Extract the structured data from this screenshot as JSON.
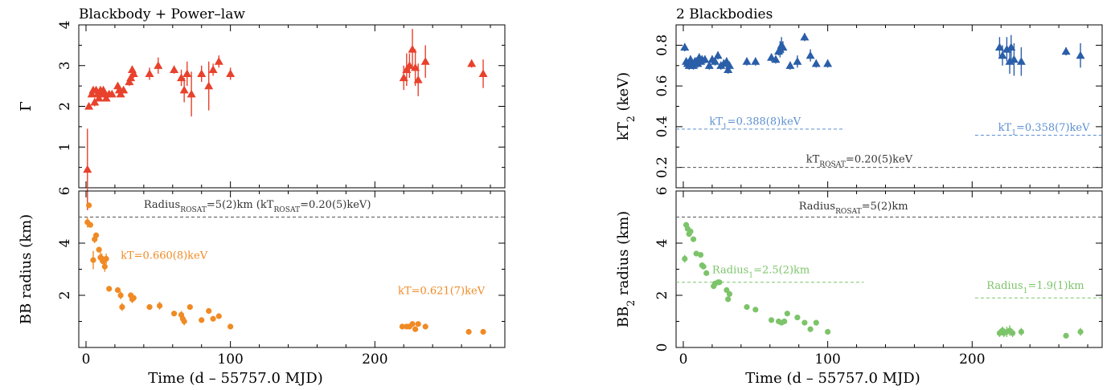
{
  "colors": {
    "red": "#e8412c",
    "orange": "#f08a24",
    "blue": "#2a5ea8",
    "green": "#7cc46a",
    "lightblue": "#5b8fcf",
    "gray": "#555555"
  },
  "shared_xlabel": "Time (d – 55757.0 MJD)",
  "chart_data": [
    {
      "id": "top-left",
      "type": "scatter",
      "title": "Blackbody + Power–law",
      "ylabel": "Γ",
      "xlabel": "",
      "xlim": [
        -5,
        290
      ],
      "ylim": [
        0,
        4
      ],
      "yticks": [
        1,
        2,
        3,
        4
      ],
      "xticks": [
        0,
        100,
        200
      ],
      "show_xtick_labels": false,
      "marker": "triangle",
      "color": "red",
      "x": [
        1,
        2,
        4,
        5,
        6,
        7,
        8,
        9,
        10,
        11,
        12,
        13,
        14,
        16,
        18,
        22,
        23,
        24,
        26,
        30,
        31,
        32,
        33,
        44,
        50,
        61,
        66,
        68,
        70,
        73,
        80,
        85,
        88,
        92,
        100,
        220,
        222,
        224,
        226,
        228,
        230,
        235,
        267,
        275
      ],
      "y": [
        0.45,
        2.0,
        2.3,
        2.4,
        2.1,
        2.4,
        2.3,
        2.2,
        2.4,
        2.3,
        2.4,
        2.3,
        2.2,
        2.3,
        2.3,
        2.5,
        2.4,
        2.3,
        2.4,
        2.6,
        2.7,
        2.9,
        2.8,
        2.8,
        3.0,
        2.9,
        2.7,
        2.4,
        2.8,
        2.3,
        2.8,
        2.5,
        2.9,
        3.1,
        2.8,
        2.7,
        2.9,
        3.0,
        3.4,
        2.95,
        2.65,
        3.1,
        3.05,
        2.8
      ],
      "yerr": [
        1.0,
        0.05,
        0.05,
        0.05,
        0.1,
        0.05,
        0.05,
        0.05,
        0.05,
        0.05,
        0.05,
        0.05,
        0.05,
        0.05,
        0.05,
        0.05,
        0.05,
        0.05,
        0.05,
        0.1,
        0.1,
        0.1,
        0.1,
        0.15,
        0.2,
        0.1,
        0.2,
        0.3,
        0.3,
        0.55,
        0.2,
        0.6,
        0.15,
        0.15,
        0.15,
        0.3,
        0.4,
        0.3,
        0.5,
        0.45,
        0.4,
        0.4,
        0.1,
        0.35
      ],
      "annotations": []
    },
    {
      "id": "bottom-left",
      "type": "scatter",
      "title": "",
      "ylabel": "BB radius (km)",
      "xlabel": "Time (d – 55757.0 MJD)",
      "xlim": [
        -5,
        290
      ],
      "ylim": [
        0,
        6
      ],
      "yticks": [
        2,
        4,
        6
      ],
      "xticks": [
        0,
        100,
        200
      ],
      "show_xtick_labels": true,
      "marker": "circle",
      "color": "orange",
      "x": [
        1,
        2,
        3,
        5,
        6,
        7,
        9,
        10,
        11,
        12,
        13,
        14,
        16,
        22,
        24,
        25,
        31,
        32,
        33,
        44,
        51,
        61,
        66,
        67,
        68,
        72,
        80,
        85,
        88,
        92,
        100,
        219,
        222,
        224,
        226,
        228,
        230,
        235,
        265,
        275
      ],
      "y": [
        4.8,
        5.45,
        4.7,
        3.35,
        4.15,
        4.3,
        3.75,
        3.45,
        3.4,
        3.3,
        3.1,
        3.4,
        2.25,
        2.2,
        2.0,
        1.55,
        2.0,
        1.85,
        1.9,
        1.55,
        1.6,
        1.3,
        1.25,
        1.1,
        1.0,
        1.55,
        1.05,
        1.4,
        1.1,
        1.2,
        0.8,
        0.8,
        0.8,
        0.8,
        0.9,
        0.7,
        0.9,
        0.8,
        0.6,
        0.6
      ],
      "yerr": [
        0.2,
        0.1,
        0.1,
        0.35,
        0.15,
        0.1,
        0.1,
        0.2,
        0.2,
        0.2,
        0.2,
        0.2,
        0.1,
        0.1,
        0.15,
        0.15,
        0.1,
        0.15,
        0.1,
        0.1,
        0.15,
        0.1,
        0.15,
        0.15,
        0.15,
        0.1,
        0.1,
        0.1,
        0.1,
        0.1,
        0.1,
        0.1,
        0.1,
        0.1,
        0.1,
        0.1,
        0.1,
        0.1,
        0.1,
        0.1
      ],
      "lines": [
        {
          "name": "radius-rosat",
          "x0": -5,
          "x1": 290,
          "y": 5.0,
          "color": "gray",
          "dash": "4,3"
        }
      ],
      "annotations": [
        {
          "name": "rosat-label",
          "x": 40,
          "y": 5.35,
          "parts": [
            {
              "t": "Radius",
              "sub": false
            },
            {
              "t": "ROSAT",
              "sub": true
            },
            {
              "t": "=5(2)km (kT",
              "sub": false
            },
            {
              "t": "ROSAT",
              "sub": true
            },
            {
              "t": "=0.20(5)keV)",
              "sub": false
            }
          ],
          "color": "#333333"
        },
        {
          "name": "kt1-label",
          "x": 24,
          "y": 3.4,
          "parts": [
            {
              "t": "kT=0.660(8)keV",
              "sub": false
            }
          ],
          "color": "orange"
        },
        {
          "name": "kt2-label",
          "x": 216,
          "y": 2.05,
          "parts": [
            {
              "t": "kT=0.621(7)keV",
              "sub": false
            }
          ],
          "color": "orange"
        }
      ]
    },
    {
      "id": "top-right",
      "type": "scatter",
      "title": "2 Blackbodies",
      "ylabel": "kT₂ (keV)",
      "ylabel_parts": [
        {
          "t": "kT",
          "sub": false
        },
        {
          "t": "2",
          "sub": true
        },
        {
          "t": " (keV)",
          "sub": false
        }
      ],
      "xlabel": "",
      "xlim": [
        -5,
        290
      ],
      "ylim": [
        0.1,
        0.9
      ],
      "yticks": [
        0.2,
        0.4,
        0.6,
        0.8
      ],
      "xticks": [
        0,
        100,
        200
      ],
      "show_xtick_labels": false,
      "marker": "triangle",
      "color": "blue",
      "x": [
        1,
        2,
        3,
        4,
        5,
        6,
        7,
        8,
        9,
        10,
        11,
        12,
        13,
        15,
        18,
        20,
        22,
        24,
        26,
        28,
        30,
        31,
        32,
        44,
        50,
        61,
        64,
        66,
        67,
        68,
        69,
        74,
        79,
        84,
        88,
        92,
        100,
        219,
        221,
        224,
        226,
        227,
        229,
        234,
        265,
        275
      ],
      "y": [
        0.79,
        0.72,
        0.71,
        0.7,
        0.73,
        0.71,
        0.7,
        0.72,
        0.72,
        0.71,
        0.74,
        0.72,
        0.73,
        0.73,
        0.7,
        0.73,
        0.72,
        0.75,
        0.7,
        0.71,
        0.72,
        0.68,
        0.7,
        0.72,
        0.72,
        0.74,
        0.73,
        0.77,
        0.78,
        0.8,
        0.79,
        0.7,
        0.72,
        0.84,
        0.75,
        0.71,
        0.71,
        0.79,
        0.75,
        0.78,
        0.72,
        0.79,
        0.73,
        0.72,
        0.77,
        0.75
      ],
      "yerr": [
        0.02,
        0.02,
        0.02,
        0.02,
        0.02,
        0.02,
        0.02,
        0.02,
        0.02,
        0.02,
        0.02,
        0.02,
        0.02,
        0.02,
        0.02,
        0.02,
        0.02,
        0.02,
        0.02,
        0.02,
        0.02,
        0.02,
        0.02,
        0.02,
        0.02,
        0.02,
        0.02,
        0.02,
        0.04,
        0.04,
        0.03,
        0.02,
        0.03,
        0.02,
        0.03,
        0.02,
        0.02,
        0.05,
        0.05,
        0.06,
        0.06,
        0.06,
        0.08,
        0.07,
        0.02,
        0.06
      ],
      "lines": [
        {
          "name": "kt1-line-early",
          "x0": -5,
          "x1": 112,
          "y": 0.388,
          "color": "lightblue",
          "dash": "4,3"
        },
        {
          "name": "kt1-line-late",
          "x0": 202,
          "x1": 290,
          "y": 0.358,
          "color": "lightblue",
          "dash": "4,3"
        },
        {
          "name": "kt-rosat-line",
          "x0": -5,
          "x1": 290,
          "y": 0.2,
          "color": "gray",
          "dash": "4,3"
        }
      ],
      "annotations": [
        {
          "name": "kt1-early-label",
          "x": 18,
          "y": 0.41,
          "parts": [
            {
              "t": "kT",
              "sub": false
            },
            {
              "t": "1",
              "sub": true
            },
            {
              "t": "=0.388(8)keV",
              "sub": false
            }
          ],
          "color": "lightblue"
        },
        {
          "name": "kt1-late-label",
          "x": 218,
          "y": 0.38,
          "parts": [
            {
              "t": "kT",
              "sub": false
            },
            {
              "t": "1",
              "sub": true
            },
            {
              "t": "=0.358(7)keV",
              "sub": false
            }
          ],
          "color": "lightblue"
        },
        {
          "name": "kt-rosat-label",
          "x": 85,
          "y": 0.225,
          "parts": [
            {
              "t": "kT",
              "sub": false
            },
            {
              "t": "ROSAT",
              "sub": true
            },
            {
              "t": "=0.20(5)keV",
              "sub": false
            }
          ],
          "color": "#333333"
        }
      ]
    },
    {
      "id": "bottom-right",
      "type": "scatter",
      "title": "",
      "ylabel": "BB₂ radius (km)",
      "ylabel_parts": [
        {
          "t": "BB",
          "sub": false
        },
        {
          "t": "2",
          "sub": true
        },
        {
          "t": " radius (km)",
          "sub": false
        }
      ],
      "xlabel": "Time (d – 55757.0 MJD)",
      "xlim": [
        -5,
        290
      ],
      "ylim": [
        0,
        6
      ],
      "yticks": [
        0,
        2,
        4,
        6
      ],
      "xticks": [
        0,
        100,
        200
      ],
      "show_xtick_labels": true,
      "marker": "circle",
      "color": "green",
      "x": [
        1,
        2,
        3,
        4,
        5,
        7,
        9,
        12,
        13,
        14,
        16,
        21,
        22,
        24,
        25,
        30,
        31,
        32,
        44,
        50,
        61,
        66,
        68,
        70,
        72,
        79,
        84,
        88,
        92,
        100,
        219,
        221,
        222,
        224,
        226,
        228,
        234,
        265,
        275
      ],
      "y": [
        3.4,
        4.7,
        4.55,
        4.35,
        4.45,
        4.15,
        3.6,
        3.55,
        3.15,
        3.1,
        2.85,
        2.35,
        2.45,
        2.5,
        2.5,
        2.2,
        1.85,
        2.05,
        1.55,
        1.45,
        1.05,
        1.0,
        0.95,
        1.0,
        1.3,
        1.15,
        0.95,
        0.7,
        0.95,
        0.6,
        0.55,
        0.65,
        0.55,
        0.6,
        0.65,
        0.55,
        0.6,
        0.45,
        0.6
      ],
      "yerr": [
        0.15,
        0.1,
        0.1,
        0.1,
        0.1,
        0.1,
        0.1,
        0.1,
        0.1,
        0.1,
        0.1,
        0.1,
        0.1,
        0.1,
        0.1,
        0.1,
        0.1,
        0.1,
        0.05,
        0.05,
        0.05,
        0.05,
        0.05,
        0.05,
        0.05,
        0.05,
        0.05,
        0.05,
        0.05,
        0.05,
        0.15,
        0.15,
        0.15,
        0.2,
        0.2,
        0.15,
        0.15,
        0.05,
        0.15
      ],
      "lines": [
        {
          "name": "radius-rosat-line",
          "x0": -5,
          "x1": 290,
          "y": 5.0,
          "color": "gray",
          "dash": "4,3"
        },
        {
          "name": "radius1-line-early",
          "x0": -5,
          "x1": 125,
          "y": 2.5,
          "color": "green",
          "dash": "4,3"
        },
        {
          "name": "radius1-line-late",
          "x0": 202,
          "x1": 290,
          "y": 1.9,
          "color": "green",
          "dash": "4,3"
        }
      ],
      "annotations": [
        {
          "name": "radius-rosat-label",
          "x": 80,
          "y": 5.3,
          "parts": [
            {
              "t": "Radius",
              "sub": false
            },
            {
              "t": "ROSAT",
              "sub": true
            },
            {
              "t": "=5(2)km",
              "sub": false
            }
          ],
          "color": "#333333"
        },
        {
          "name": "radius1-early-label",
          "x": 20,
          "y": 2.85,
          "parts": [
            {
              "t": "Radius",
              "sub": false
            },
            {
              "t": "1",
              "sub": true
            },
            {
              "t": "=2.5(2)km",
              "sub": false
            }
          ],
          "color": "green"
        },
        {
          "name": "radius1-late-label",
          "x": 210,
          "y": 2.25,
          "parts": [
            {
              "t": "Radius",
              "sub": false
            },
            {
              "t": "1",
              "sub": true
            },
            {
              "t": "=1.9(1)km",
              "sub": false
            }
          ],
          "color": "green"
        }
      ]
    }
  ]
}
